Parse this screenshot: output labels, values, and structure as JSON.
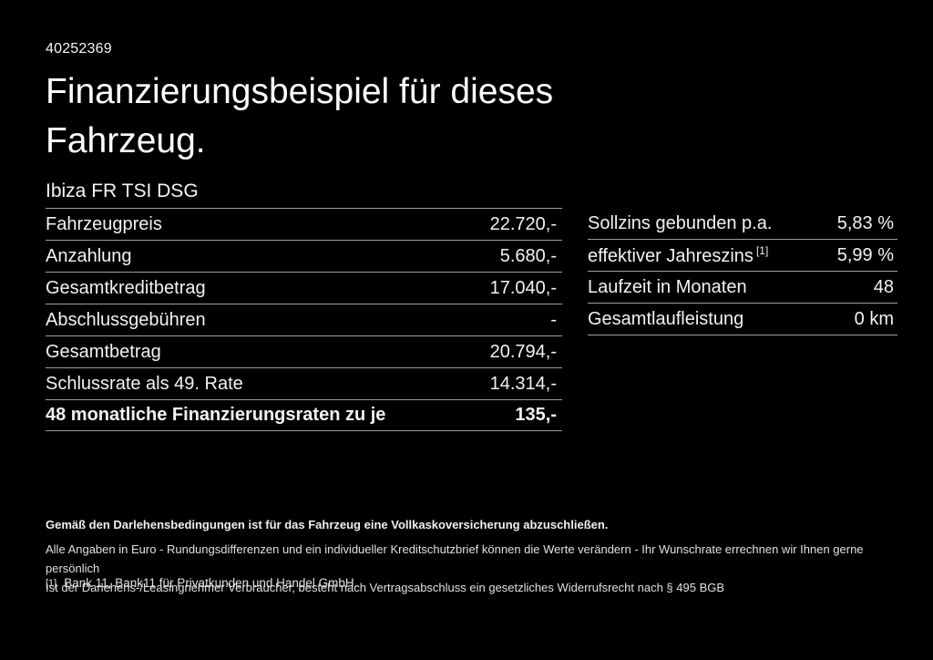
{
  "colors": {
    "background": "#000000",
    "text": "#f2f2f2",
    "divider": "#9e9e9e"
  },
  "header": {
    "ref_number": "40252369",
    "title": "Finanzierungsbeispiel für dieses Fahrzeug.",
    "subtitle": "Ibiza FR TSI DSG"
  },
  "finance_table": {
    "rows": [
      {
        "label": "Fahrzeugpreis",
        "value": "22.720,-",
        "emphasis": false
      },
      {
        "label": "Anzahlung",
        "value": "5.680,-",
        "emphasis": false
      },
      {
        "label": "Gesamtkreditbetrag",
        "value": "17.040,-",
        "emphasis": false
      },
      {
        "label": "Abschlussgebühren",
        "value": "-",
        "emphasis": false
      },
      {
        "label": "Gesamtbetrag",
        "value": "20.794,-",
        "emphasis": false
      },
      {
        "label": "Schlussrate als 49. Rate",
        "value": "14.314,-",
        "emphasis": false
      },
      {
        "label": "48 monatliche Finanzierungsraten zu je",
        "value": "135,-",
        "emphasis": true
      }
    ]
  },
  "conditions_table": {
    "rows": [
      {
        "label": "Sollzins gebunden p.a.",
        "sup": "",
        "value": "5,83 %"
      },
      {
        "label": "effektiver Jahreszins",
        "sup": "[1]",
        "value": "5,99 %"
      },
      {
        "label": "Laufzeit in Monaten",
        "sup": "",
        "value": "48"
      },
      {
        "label": "Gesamtlaufleistung",
        "sup": "",
        "value": "0 km"
      }
    ]
  },
  "footer": {
    "insurance_note": "Gemäß den Darlehensbedingungen ist für das Fahrzeug eine Vollkaskoversicherung abzuschließen.",
    "disclaimer_line1": "Alle Angaben in Euro - Rundungsdifferenzen und ein individueller Kreditschutzbrief können die Werte verändern - Ihr Wunschrate errechnen wir Ihnen gerne persönlich",
    "disclaimer_line2": "Ist der Darlehens-/Leasingnehmer Verbraucher, besteht nach Vertragsabschluss ein gesetzliches Widerrufsrecht nach § 495 BGB",
    "footnote_marker": "[1]",
    "footnote_text": "Bank 11, Bank11 für Privatkunden und Handel GmbH."
  }
}
